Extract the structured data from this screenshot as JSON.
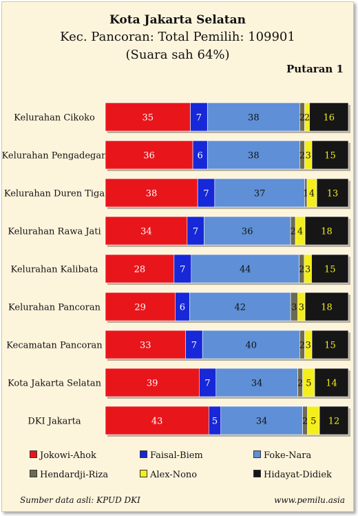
{
  "header": {
    "title": "Kota Jakarta Selatan",
    "subtitle": "Kec. Pancoran: Total Pemilih: 109901",
    "note": "(Suara sah 64%)",
    "round": "Putaran 1"
  },
  "footer": {
    "source": "Sumber data asli: KPUD DKI",
    "website": "www.pemilu.asia"
  },
  "chart_data": {
    "type": "bar",
    "orientation": "horizontal",
    "stacked": true,
    "percent_stacked": true,
    "categories": [
      "Kelurahan Cikoko",
      "Kelurahan Pengadegan",
      "Kelurahan Duren Tiga",
      "Kelurahan Rawa Jati",
      "Kelurahan Kalibata",
      "Kelurahan Pancoran",
      "Kecamatan Pancoran",
      "Kota Jakarta Selatan",
      "DKI Jakarta"
    ],
    "series": [
      {
        "name": "Jokowi-Ahok",
        "color": "#e8161b",
        "label_color": "#ffffff",
        "values": [
          35,
          36,
          38,
          34,
          28,
          29,
          33,
          39,
          43
        ]
      },
      {
        "name": "Faisal-Biem",
        "color": "#1628d8",
        "label_color": "#ffffff",
        "values": [
          7,
          6,
          7,
          7,
          7,
          6,
          7,
          7,
          5
        ]
      },
      {
        "name": "Foke-Nara",
        "color": "#5f8fd6",
        "label_color": "#111111",
        "values": [
          38,
          38,
          37,
          36,
          44,
          42,
          40,
          34,
          34
        ]
      },
      {
        "name": "Hendardji-Riza",
        "color": "#6e6b55",
        "label_color": "#111111",
        "values": [
          2,
          2,
          1,
          2,
          2,
          3,
          2,
          2,
          2
        ]
      },
      {
        "name": "Alex-Nono",
        "color": "#f4ee1c",
        "label_color": "#111111",
        "values": [
          2,
          3,
          4,
          4,
          3,
          3,
          3,
          5,
          5
        ]
      },
      {
        "name": "Hidayat-Didiek",
        "color": "#161616",
        "label_color": "#f4ee1c",
        "values": [
          16,
          15,
          13,
          18,
          15,
          18,
          15,
          14,
          12
        ]
      }
    ],
    "legend_position": "bottom",
    "grid": false,
    "xlim": [
      0,
      100
    ]
  }
}
